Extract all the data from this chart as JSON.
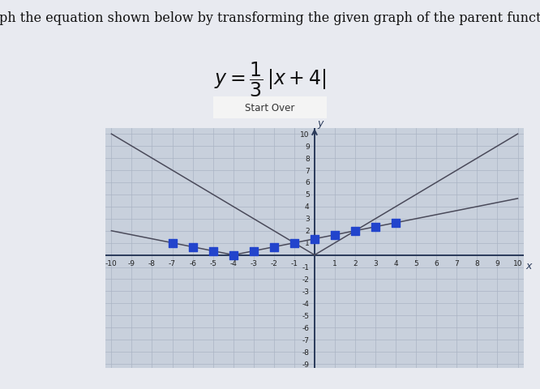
{
  "title": "Graph the equation shown below by transforming the given graph of the parent function.",
  "button_text": "Start Over",
  "outer_bg_color": "#e8eaf0",
  "grid_bg_color": "#c8d0dc",
  "grid_color": "#aab4c4",
  "axis_color": "#2a3a5a",
  "line_color": "#4a4a5a",
  "dot_color": "#2244cc",
  "dot_size": 45,
  "x_range": [
    -10,
    10
  ],
  "y_range": [
    -9,
    10
  ],
  "x_ticks": [
    -10,
    -9,
    -8,
    -7,
    -6,
    -5,
    -4,
    -3,
    -2,
    -1,
    1,
    2,
    3,
    4,
    5,
    6,
    7,
    8,
    9,
    10
  ],
  "y_ticks": [
    -9,
    -8,
    -7,
    -6,
    -5,
    -4,
    -3,
    -2,
    -1,
    1,
    2,
    3,
    4,
    5,
    6,
    7,
    8,
    9,
    10
  ],
  "dot_x_values": [
    -7,
    -6,
    -5,
    -4,
    -3,
    -2,
    -1,
    0,
    1,
    2,
    3,
    4
  ],
  "vertex_x": -4,
  "title_fontsize": 11.5,
  "tick_fontsize": 6.5
}
